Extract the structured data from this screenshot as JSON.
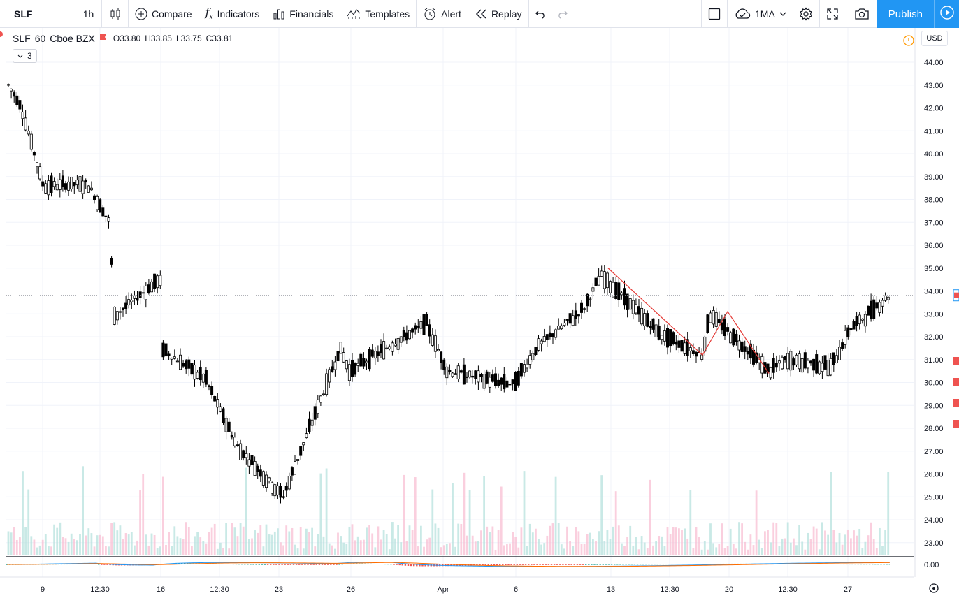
{
  "toolbar": {
    "symbol": "SLF",
    "interval": "1h",
    "compare": "Compare",
    "indicators": "Indicators",
    "financials": "Financials",
    "templates": "Templates",
    "alert": "Alert",
    "replay": "Replay",
    "layout_name": "1MA",
    "publish": "Publish"
  },
  "legend": {
    "symbol": "SLF",
    "interval": "60",
    "exchange": "Cboe BZX",
    "open": "O33.80",
    "high": "H33.85",
    "low": "L33.75",
    "close": "C33.81",
    "collapsed_count": "3"
  },
  "price_scale": {
    "currency": "USD",
    "min": 22.5,
    "max": 44.5,
    "labels": [
      "44.00",
      "43.00",
      "42.00",
      "41.00",
      "40.00",
      "39.00",
      "38.00",
      "37.00",
      "36.00",
      "35.00",
      "34.00",
      "33.00",
      "32.00",
      "31.00",
      "30.00",
      "29.00",
      "28.00",
      "27.00",
      "26.00",
      "25.00",
      "24.00",
      "23.00"
    ],
    "indicator_label": "0.00"
  },
  "time_scale": {
    "labels": [
      "9",
      "12:30",
      "16",
      "12:30",
      "23",
      "26",
      "Apr",
      "6",
      "13",
      "12:30",
      "20",
      "12:30",
      "27"
    ]
  },
  "colors": {
    "candle": "#000000",
    "volume_up": "#b2dfdb",
    "volume_down": "#f8bbd0",
    "drawing": "#e53935",
    "accent": "#2196f3",
    "macd_line": "#2196f3",
    "signal_line": "#ff6d00",
    "hist_up": "#26a69a",
    "hist_down": "#ef5350"
  },
  "chart_data": {
    "type": "candlestick",
    "ylim": [
      22.5,
      44.5
    ],
    "x": [
      "9",
      "12:30",
      "16",
      "12:30",
      "23",
      "26",
      "Apr",
      "6",
      "13",
      "12:30",
      "20",
      "12:30",
      "27"
    ],
    "anchors": [
      {
        "label": "start",
        "close": 43.0
      },
      {
        "label": "9",
        "close": 42.1
      },
      {
        "label": "9",
        "close": 38.6
      },
      {
        "label": "12:30",
        "close": 38.7
      },
      {
        "label": "12:30",
        "close": 37.0
      },
      {
        "label": "16",
        "close": 32.9
      },
      {
        "label": "16",
        "close": 34.5
      },
      {
        "label": "12:30",
        "close": 30.2
      },
      {
        "label": "12:30",
        "close": 27.2
      },
      {
        "label": "23",
        "close": 25.0
      },
      {
        "label": "26",
        "close": 31.5
      },
      {
        "label": "26",
        "close": 30.5
      },
      {
        "label": "Apr",
        "close": 32.6
      },
      {
        "label": "Apr",
        "close": 30.5
      },
      {
        "label": "6",
        "close": 29.9
      },
      {
        "label": "6",
        "close": 31.6
      },
      {
        "label": "13",
        "close": 33.2
      },
      {
        "label": "13",
        "close": 34.7
      },
      {
        "label": "12:30",
        "close": 32.1
      },
      {
        "label": "12:30",
        "close": 31.2
      },
      {
        "label": "20",
        "close": 33.0
      },
      {
        "label": "20",
        "close": 30.5
      },
      {
        "label": "12:30",
        "close": 31.0
      },
      {
        "label": "12:30",
        "close": 30.7
      },
      {
        "label": "27",
        "close": 32.3
      },
      {
        "label": "27",
        "close": 33.8
      }
    ],
    "drawing_points": [
      {
        "x": "13",
        "y": 35.0
      },
      {
        "x": "12:30",
        "y": 31.2
      },
      {
        "x": "20",
        "y": 33.1
      },
      {
        "x": "12:30",
        "y": 30.4
      }
    ],
    "last_price": 33.81
  }
}
